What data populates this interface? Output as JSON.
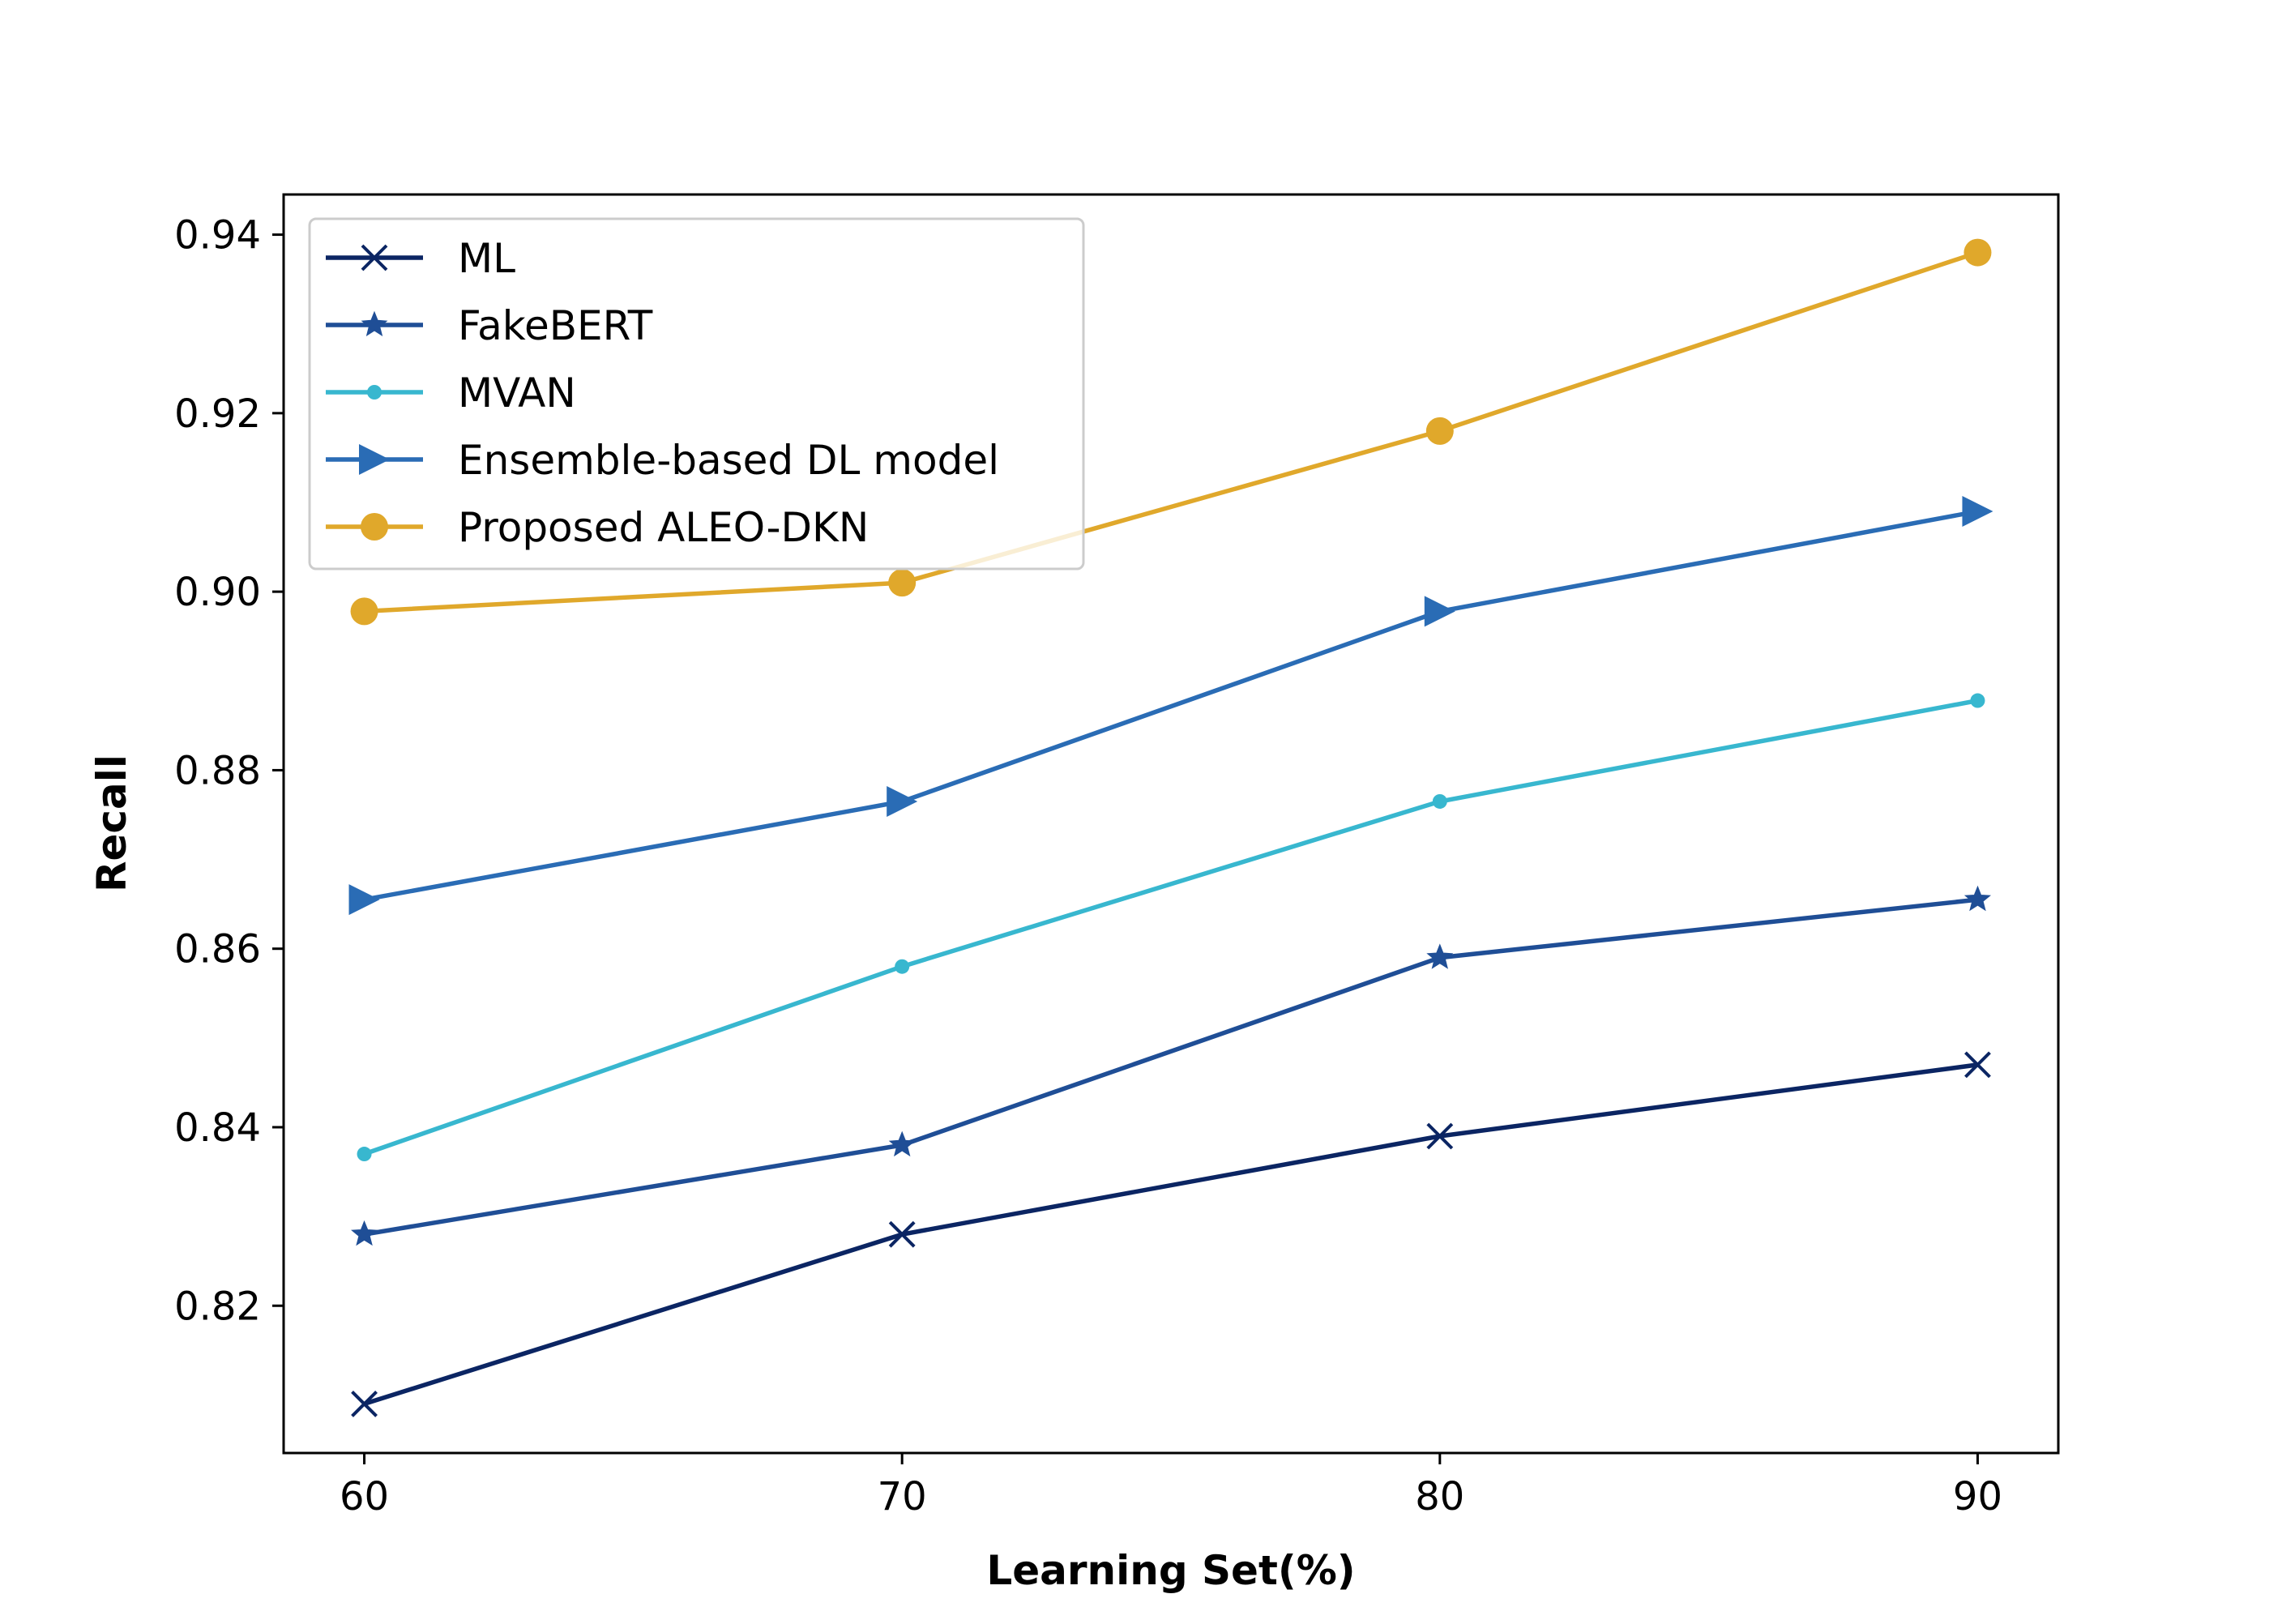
{
  "chart_data": {
    "type": "line",
    "title": "",
    "xlabel": "Learning Set(%)",
    "ylabel": "Recall",
    "x": [
      60,
      70,
      80,
      90
    ],
    "xticks": [
      "60",
      "70",
      "80",
      "90"
    ],
    "yticks": [
      "0.82",
      "0.84",
      "0.86",
      "0.88",
      "0.90",
      "0.92",
      "0.94"
    ],
    "xlim": [
      58.5,
      91.5
    ],
    "ylim": [
      0.8035,
      0.9445
    ],
    "grid": false,
    "legend_position": "upper-left",
    "series": [
      {
        "name": "ML",
        "values": [
          0.809,
          0.828,
          0.839,
          0.847
        ],
        "color": "#0b2563",
        "marker": "x"
      },
      {
        "name": "FakeBERT",
        "values": [
          0.828,
          0.838,
          0.859,
          0.8655
        ],
        "color": "#1f4e96",
        "marker": "star"
      },
      {
        "name": "MVAN",
        "values": [
          0.837,
          0.858,
          0.8765,
          0.8878
        ],
        "color": "#38b7cf",
        "marker": "dot"
      },
      {
        "name": "Ensemble-based DL model",
        "values": [
          0.8655,
          0.8765,
          0.8978,
          0.909
        ],
        "color": "#2a6cb5",
        "marker": "triangle-right"
      },
      {
        "name": "Proposed ALEO-DKN",
        "values": [
          0.8978,
          0.901,
          0.918,
          0.938
        ],
        "color": "#e0a82b",
        "marker": "circle"
      }
    ]
  }
}
